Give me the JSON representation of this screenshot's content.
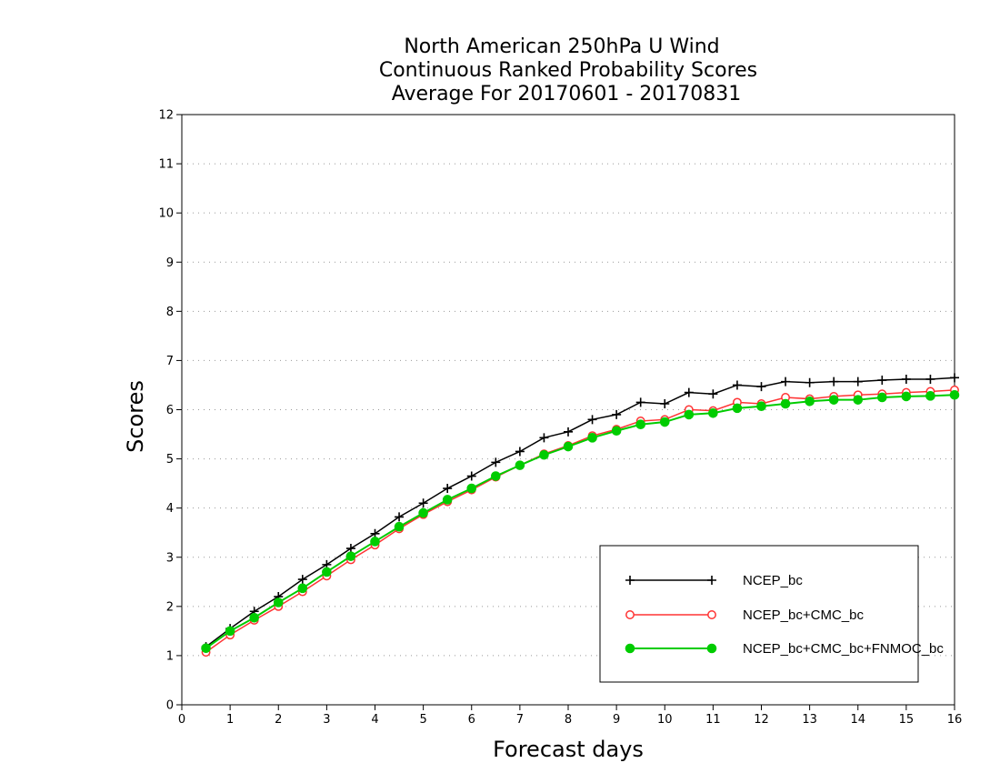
{
  "chart_data": {
    "type": "line",
    "title": [
      "North American 250hPa U Wind",
      "Continuous Ranked Probability Scores",
      "Average For 20170601 - 20170831"
    ],
    "xlabel": "Forecast days",
    "ylabel": "Scores",
    "xlim": [
      0,
      16
    ],
    "ylim": [
      0,
      12
    ],
    "xticks": [
      "0",
      "1",
      "2",
      "3",
      "4",
      "5",
      "6",
      "7",
      "8",
      "9",
      "10",
      "11",
      "12",
      "13",
      "14",
      "15",
      "16"
    ],
    "yticks": [
      "0",
      "1",
      "2",
      "3",
      "4",
      "5",
      "6",
      "7",
      "8",
      "9",
      "10",
      "11",
      "12"
    ],
    "grid": "horizontal dotted",
    "legend_position": "bottom-right",
    "x": [
      0.5,
      1,
      1.5,
      2,
      2.5,
      3,
      3.5,
      4,
      4.5,
      5,
      5.5,
      6,
      6.5,
      7,
      7.5,
      8,
      8.5,
      9,
      9.5,
      10,
      10.5,
      11,
      11.5,
      12,
      12.5,
      13,
      13.5,
      14,
      14.5,
      15,
      15.5,
      16
    ],
    "series": [
      {
        "name": "NCEP_bc",
        "color": "#000000",
        "marker": "plus",
        "values": [
          1.18,
          1.55,
          1.9,
          2.2,
          2.55,
          2.85,
          3.18,
          3.48,
          3.82,
          4.1,
          4.4,
          4.65,
          4.93,
          5.15,
          5.43,
          5.55,
          5.8,
          5.9,
          6.15,
          6.12,
          6.35,
          6.32,
          6.5,
          6.47,
          6.57,
          6.55,
          6.57,
          6.57,
          6.6,
          6.62,
          6.62,
          6.65
        ]
      },
      {
        "name": "NCEP_bc+CMC_bc",
        "color": "#ff3333",
        "marker": "open-circle",
        "values": [
          1.07,
          1.42,
          1.72,
          2.0,
          2.3,
          2.62,
          2.95,
          3.25,
          3.58,
          3.87,
          4.13,
          4.37,
          4.63,
          4.87,
          5.1,
          5.27,
          5.47,
          5.6,
          5.77,
          5.8,
          6.0,
          5.98,
          6.15,
          6.12,
          6.25,
          6.22,
          6.27,
          6.3,
          6.32,
          6.35,
          6.37,
          6.4
        ]
      },
      {
        "name": "NCEP_bc+CMC_bc+FNMOC_bc",
        "color": "#00cc00",
        "marker": "filled-circle",
        "values": [
          1.15,
          1.5,
          1.77,
          2.08,
          2.37,
          2.7,
          3.02,
          3.32,
          3.62,
          3.9,
          4.17,
          4.4,
          4.65,
          4.87,
          5.08,
          5.25,
          5.43,
          5.57,
          5.7,
          5.75,
          5.9,
          5.93,
          6.03,
          6.07,
          6.12,
          6.17,
          6.2,
          6.2,
          6.25,
          6.27,
          6.28,
          6.3
        ]
      }
    ]
  }
}
